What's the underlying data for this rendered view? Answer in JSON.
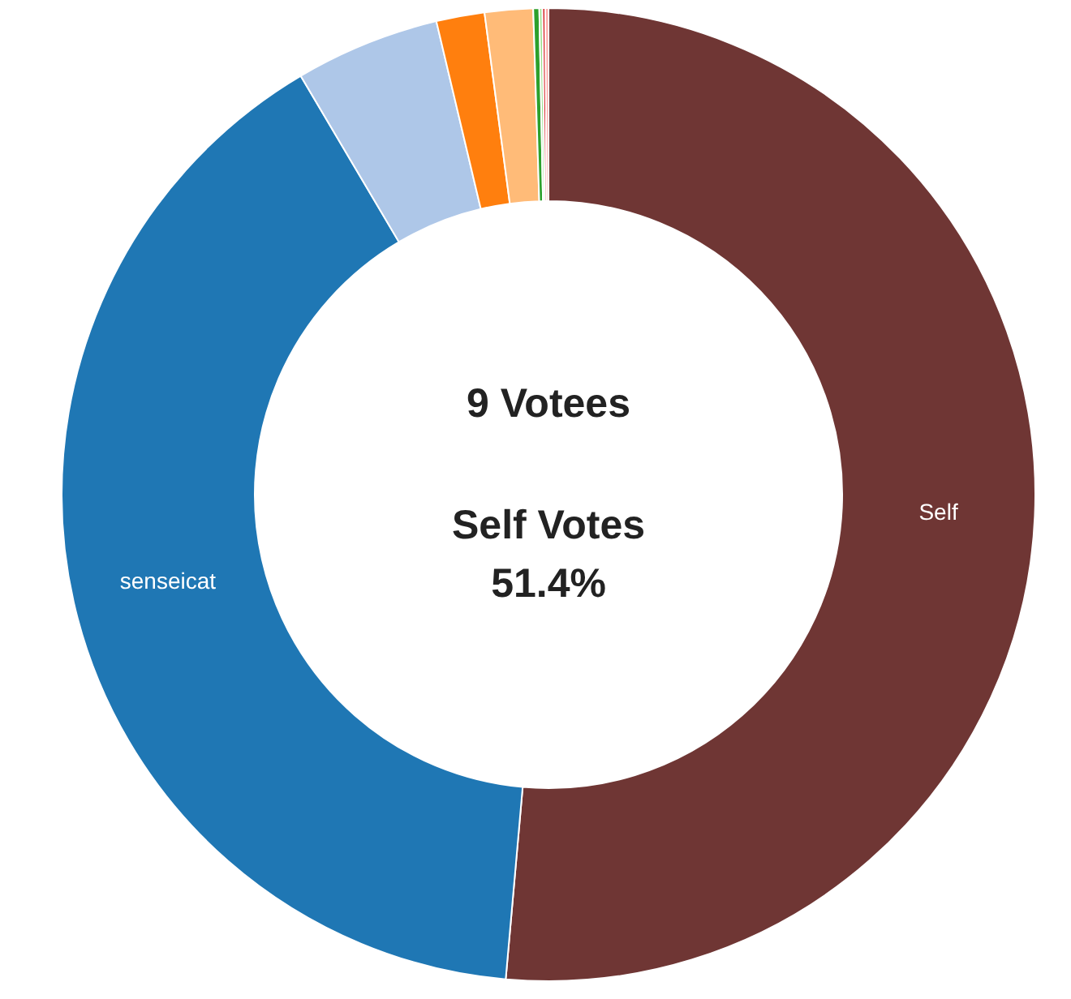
{
  "chart_data": {
    "type": "donut",
    "title": "9 Votees",
    "annotations": [
      "Self Votes",
      "51.4%"
    ],
    "categories": [
      "Self",
      "senseicat",
      null,
      null,
      null,
      null,
      null,
      null,
      null
    ],
    "values": [
      51.4,
      40.1,
      4.8,
      1.6,
      1.6,
      0.2,
      0.1,
      0.1,
      0.1
    ],
    "colors": [
      "#6f3634",
      "#1f77b4",
      "#aec7e8",
      "#ff7f0e",
      "#ffbb78",
      "#2ca02c",
      "#98df8a",
      "#d62728",
      "#ff9896"
    ]
  }
}
